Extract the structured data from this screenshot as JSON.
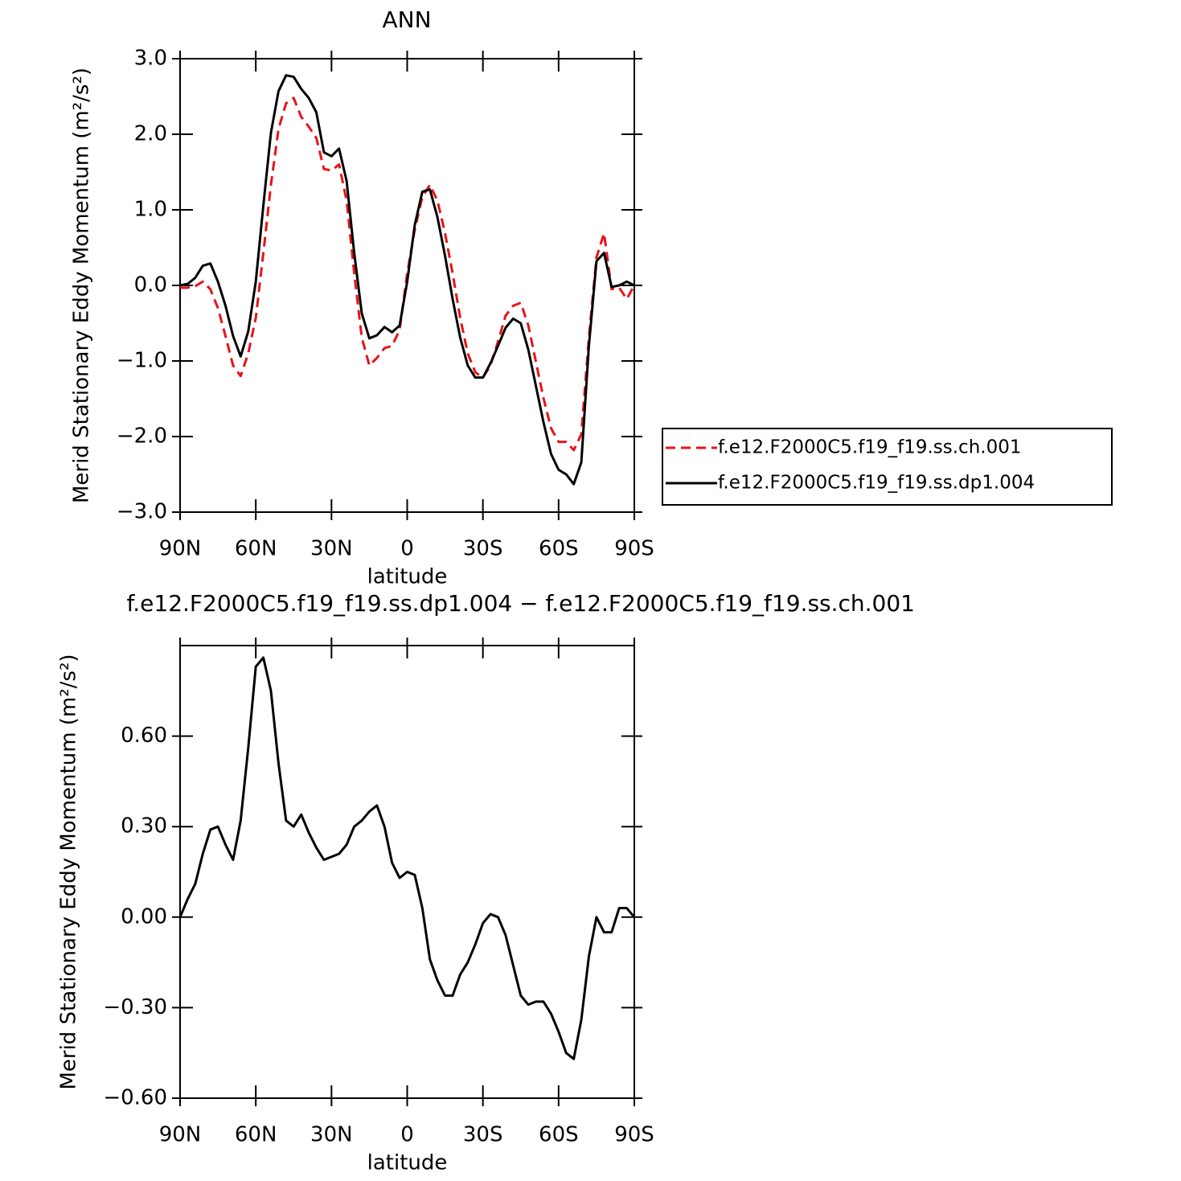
{
  "chart_data": [
    {
      "type": "line",
      "title": "ANN",
      "x_label": "latitude",
      "y_label": "Merid Stationary Eddy Momentum (m²/s²)",
      "x": [
        90,
        87,
        84,
        81,
        78,
        75,
        72,
        69,
        66,
        63,
        60,
        57,
        54,
        51,
        48,
        45,
        42,
        39,
        36,
        33,
        30,
        27,
        24,
        21,
        18,
        15,
        12,
        9,
        6,
        3,
        0,
        -3,
        -6,
        -9,
        -12,
        -15,
        -18,
        -21,
        -24,
        -27,
        -30,
        -33,
        -36,
        -39,
        -42,
        -45,
        -48,
        -51,
        -54,
        -57,
        -60,
        -63,
        -66,
        -69,
        -72,
        -75,
        -78,
        -81,
        -84,
        -87,
        -90
      ],
      "xlim": [
        90,
        -90
      ],
      "xticks": [
        {
          "value": 90,
          "label": "90N"
        },
        {
          "value": 60,
          "label": "60N"
        },
        {
          "value": 30,
          "label": "30N"
        },
        0,
        {
          "value": -30,
          "label": "30S"
        },
        {
          "value": -60,
          "label": "60S"
        },
        {
          "value": -90,
          "label": "90S"
        }
      ],
      "ylim": [
        -3,
        3
      ],
      "yticks": [
        {
          "value": -3,
          "label": "−3.0"
        },
        {
          "value": -2,
          "label": "−2.0"
        },
        {
          "value": -1,
          "label": "−1.0"
        },
        {
          "value": 0,
          "label": "0.0"
        },
        {
          "value": 1,
          "label": "1.0"
        },
        {
          "value": 2,
          "label": "2.0"
        },
        {
          "value": 3,
          "label": "3.0"
        }
      ],
      "legend": "right",
      "series": [
        {
          "name": "f.e12.F2000C5.f19_f19.ss.ch.001",
          "color": "#e8131a",
          "dashed": true,
          "values": [
            -0.03,
            -0.03,
            -0.01,
            0.05,
            -0.05,
            -0.3,
            -0.67,
            -1.06,
            -1.2,
            -0.9,
            -0.43,
            0.43,
            1.33,
            2.07,
            2.41,
            2.48,
            2.23,
            2.1,
            1.95,
            1.54,
            1.52,
            1.6,
            1.12,
            0.16,
            -0.69,
            -1.06,
            -0.96,
            -0.83,
            -0.8,
            -0.59,
            0.16,
            0.74,
            1.17,
            1.33,
            1.12,
            0.69,
            0.16,
            -0.43,
            -0.9,
            -1.15,
            -1.22,
            -1.06,
            -0.74,
            -0.4,
            -0.27,
            -0.23,
            -0.53,
            -1.01,
            -1.49,
            -1.89,
            -2.07,
            -2.07,
            -2.18,
            -1.97,
            -0.69,
            0.37,
            0.69,
            -0.05,
            -0.03,
            -0.18,
            0.0
          ]
        },
        {
          "name": "f.e12.F2000C5.f19_f19.ss.dp1.004",
          "color": "#000000",
          "dashed": false,
          "values": [
            0.0,
            0.02,
            0.1,
            0.26,
            0.29,
            0.05,
            -0.27,
            -0.67,
            -0.94,
            -0.61,
            0.05,
            1.06,
            2.02,
            2.57,
            2.78,
            2.76,
            2.6,
            2.48,
            2.29,
            1.76,
            1.71,
            1.81,
            1.38,
            0.43,
            -0.37,
            -0.7,
            -0.66,
            -0.55,
            -0.62,
            -0.53,
            0.05,
            0.8,
            1.24,
            1.27,
            0.9,
            0.39,
            -0.18,
            -0.69,
            -1.06,
            -1.22,
            -1.22,
            -1.03,
            -0.8,
            -0.56,
            -0.44,
            -0.5,
            -0.85,
            -1.33,
            -1.81,
            -2.23,
            -2.44,
            -2.5,
            -2.63,
            -2.34,
            -0.8,
            0.32,
            0.43,
            -0.02,
            0.0,
            0.05,
            0.0
          ]
        }
      ]
    },
    {
      "type": "line",
      "title": "f.e12.F2000C5.f19_f19.ss.dp1.004 − f.e12.F2000C5.f19_f19.ss.ch.001",
      "x_label": "latitude",
      "y_label": "Merid Stationary Eddy Momentum (m²/s²)",
      "x": [
        90,
        87,
        84,
        81,
        78,
        75,
        72,
        69,
        66,
        63,
        60,
        57,
        54,
        51,
        48,
        45,
        42,
        39,
        36,
        33,
        30,
        27,
        24,
        21,
        18,
        15,
        12,
        9,
        6,
        3,
        0,
        -3,
        -6,
        -9,
        -12,
        -15,
        -18,
        -21,
        -24,
        -27,
        -30,
        -33,
        -36,
        -39,
        -42,
        -45,
        -48,
        -51,
        -54,
        -57,
        -60,
        -63,
        -66,
        -69,
        -72,
        -75,
        -78,
        -81,
        -84,
        -87,
        -90
      ],
      "xlim": [
        90,
        -90
      ],
      "xticks": [
        {
          "value": 90,
          "label": "90N"
        },
        {
          "value": 60,
          "label": "60N"
        },
        {
          "value": 30,
          "label": "30N"
        },
        0,
        {
          "value": -30,
          "label": "30S"
        },
        {
          "value": -60,
          "label": "60S"
        },
        {
          "value": -90,
          "label": "90S"
        }
      ],
      "ylim": [
        -0.6,
        0.9
      ],
      "yticks": [
        {
          "value": -0.6,
          "label": "−0.60"
        },
        {
          "value": -0.3,
          "label": "−0.30"
        },
        {
          "value": 0,
          "label": "0.00"
        },
        {
          "value": 0.3,
          "label": "0.30"
        },
        {
          "value": 0.6,
          "label": "0.60"
        }
      ],
      "color": "#000000",
      "values": [
        0,
        0.06,
        0.11,
        0.21,
        0.29,
        0.3,
        0.24,
        0.19,
        0.32,
        0.56,
        0.83,
        0.86,
        0.75,
        0.51,
        0.32,
        0.3,
        0.34,
        0.28,
        0.23,
        0.19,
        0.2,
        0.21,
        0.24,
        0.3,
        0.32,
        0.35,
        0.37,
        0.3,
        0.18,
        0.13,
        0.15,
        0.14,
        0.03,
        -0.14,
        -0.21,
        -0.26,
        -0.26,
        -0.19,
        -0.15,
        -0.09,
        -0.02,
        0.01,
        0.0,
        -0.06,
        -0.16,
        -0.26,
        -0.29,
        -0.28,
        -0.28,
        -0.32,
        -0.38,
        -0.45,
        -0.47,
        -0.34,
        -0.13,
        0.0,
        -0.05,
        -0.05,
        0.03,
        0.03,
        0.0
      ]
    }
  ]
}
